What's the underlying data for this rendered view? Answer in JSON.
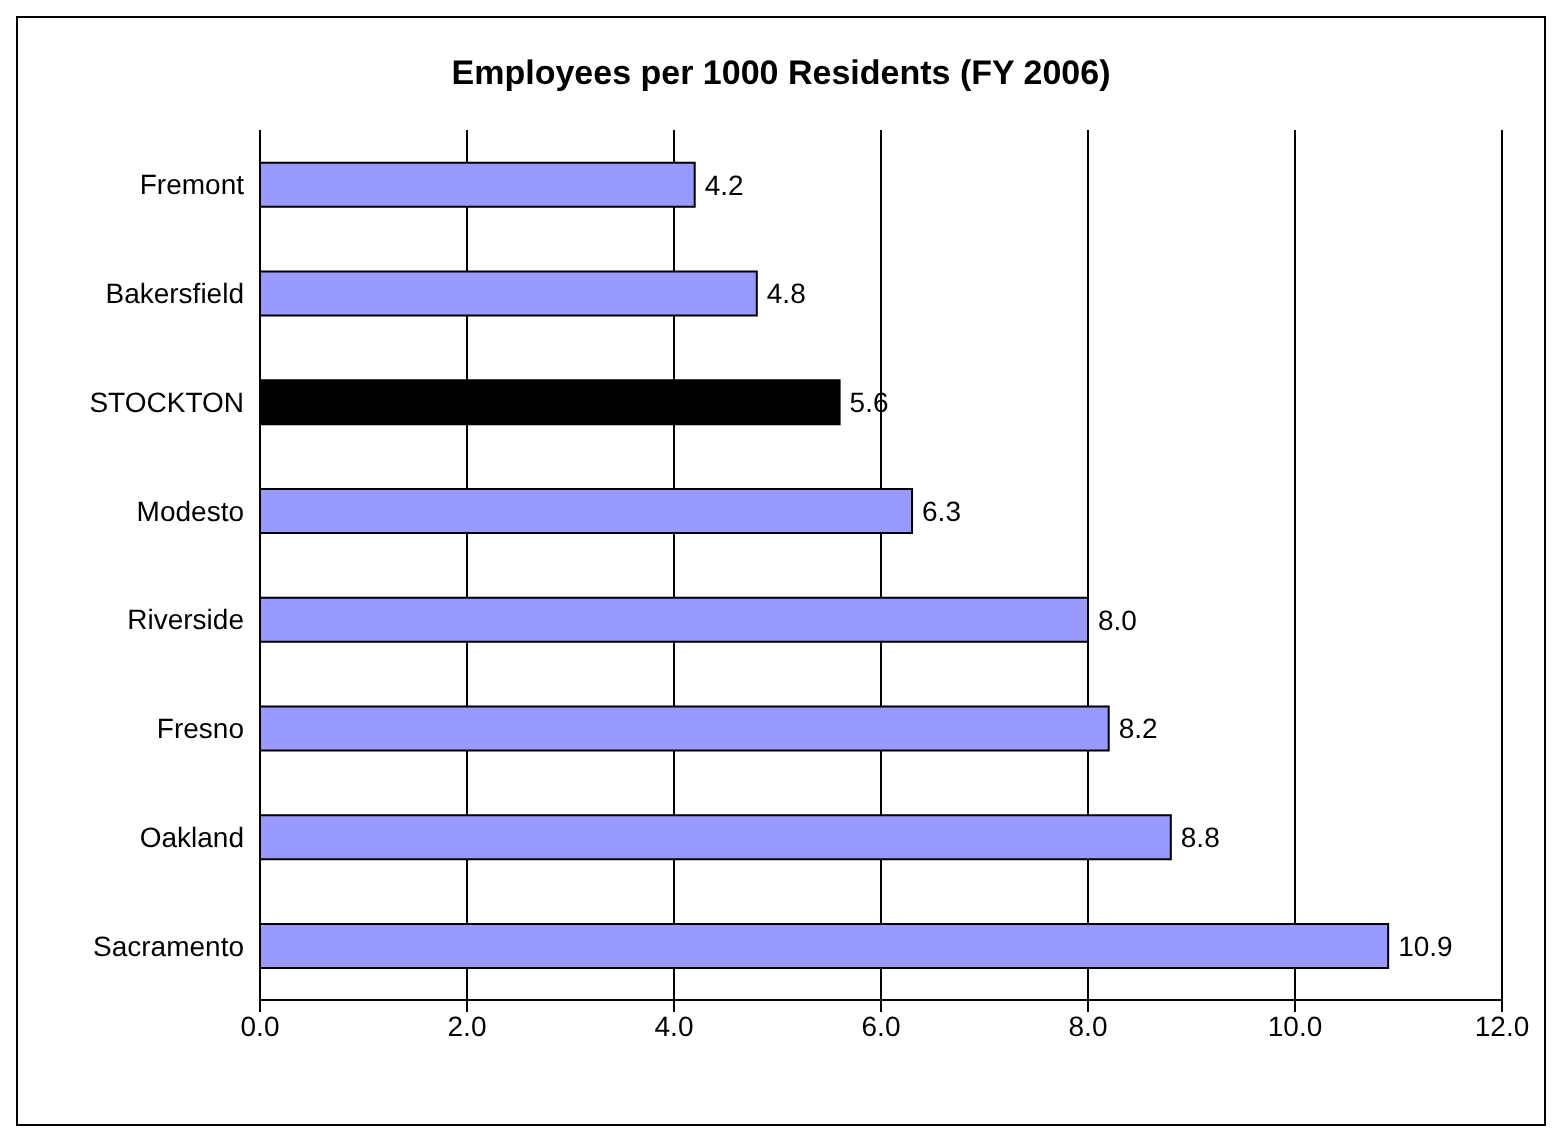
{
  "chart_data": {
    "type": "bar",
    "orientation": "horizontal",
    "title": "Employees per 1000 Residents (FY 2006)",
    "categories": [
      "Fremont",
      "Bakersfield",
      "STOCKTON",
      "Modesto",
      "Riverside",
      "Fresno",
      "Oakland",
      "Sacramento"
    ],
    "values": [
      4.2,
      4.8,
      5.6,
      6.3,
      8.0,
      8.2,
      8.8,
      10.9
    ],
    "colors": [
      "#9999ff",
      "#9999ff",
      "#000000",
      "#9999ff",
      "#9999ff",
      "#9999ff",
      "#9999ff",
      "#9999ff"
    ],
    "value_labels": [
      "4.2",
      "4.8",
      "5.6",
      "6.3",
      "8.0",
      "8.2",
      "8.8",
      "10.9"
    ],
    "xlim": [
      0,
      12
    ],
    "xticks": [
      {
        "value": 0,
        "label": "0.0"
      },
      {
        "value": 2,
        "label": "2.0"
      },
      {
        "value": 4,
        "label": "4.0"
      },
      {
        "value": 6,
        "label": "6.0"
      },
      {
        "value": 8,
        "label": "8.0"
      },
      {
        "value": 10,
        "label": "10.0"
      },
      {
        "value": 12,
        "label": "12.0"
      }
    ],
    "grid": "x",
    "legend": false
  }
}
